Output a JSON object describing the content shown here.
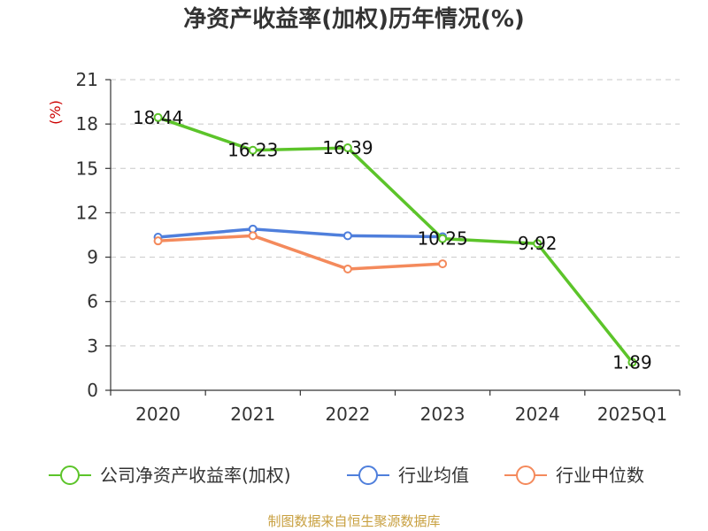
{
  "chart_data": {
    "type": "line",
    "title": "净资产收益率(加权)历年情况(%)",
    "y_unit": "(%)",
    "categories": [
      "2020",
      "2021",
      "2022",
      "2023",
      "2024",
      "2025Q1"
    ],
    "ylim": [
      0,
      21
    ],
    "yticks": [
      0,
      3,
      6,
      9,
      12,
      15,
      18,
      21
    ],
    "grid": true,
    "legend_position": "bottom",
    "series": [
      {
        "name": "公司净资产收益率(加权)",
        "color": "#5cc42a",
        "values": [
          18.44,
          16.23,
          16.39,
          10.25,
          9.92,
          1.89
        ],
        "labels": [
          "18.44",
          "16.23",
          "16.39",
          "10.25",
          "9.92",
          "1.89"
        ]
      },
      {
        "name": "行业均值",
        "color": "#4f7fdc",
        "values": [
          10.35,
          10.9,
          10.45,
          10.38,
          null,
          null
        ]
      },
      {
        "name": "行业中位数",
        "color": "#f48a5c",
        "values": [
          10.1,
          10.45,
          8.2,
          8.55,
          null,
          null
        ]
      }
    ]
  },
  "footer": {
    "source": "制图数据来自恒生聚源数据库"
  }
}
